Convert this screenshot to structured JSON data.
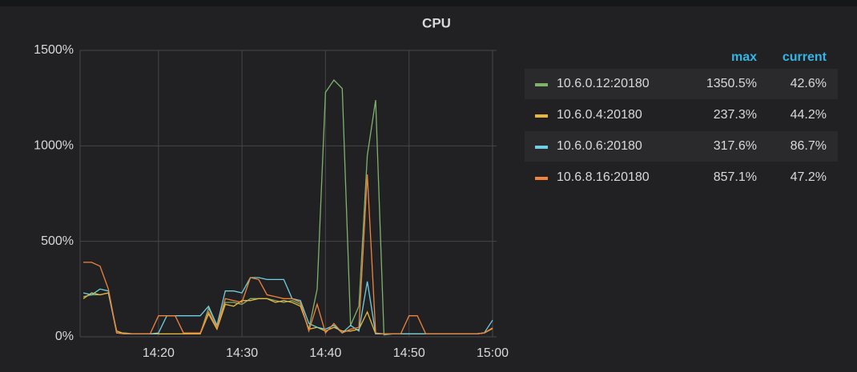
{
  "chart_data": {
    "type": "line",
    "title": "CPU",
    "x": [
      "14:11",
      "14:12",
      "14:13",
      "14:14",
      "14:15",
      "14:16",
      "14:17",
      "14:18",
      "14:19",
      "14:20",
      "14:21",
      "14:22",
      "14:23",
      "14:24",
      "14:25",
      "14:26",
      "14:27",
      "14:28",
      "14:29",
      "14:30",
      "14:31",
      "14:32",
      "14:33",
      "14:34",
      "14:35",
      "14:36",
      "14:37",
      "14:38",
      "14:39",
      "14:40",
      "14:41",
      "14:42",
      "14:43",
      "14:44",
      "14:45",
      "14:46",
      "14:47",
      "14:48",
      "14:49",
      "14:50",
      "14:51",
      "14:52",
      "14:53",
      "14:54",
      "14:55",
      "14:56",
      "14:57",
      "14:58",
      "14:59",
      "15:00"
    ],
    "xlim": [
      "14:11",
      "15:00"
    ],
    "xticks": [
      "14:20",
      "14:30",
      "14:40",
      "14:50",
      "15:00"
    ],
    "ylim": [
      0,
      1500
    ],
    "yticks": [
      {
        "value": 0,
        "label": "0%"
      },
      {
        "value": 500,
        "label": "500%"
      },
      {
        "value": 1000,
        "label": "1000%"
      },
      {
        "value": 1500,
        "label": "1500%"
      }
    ],
    "grid": true,
    "legend_headers": [
      "max",
      "current"
    ],
    "series": [
      {
        "name": "10.6.0.12:20180",
        "color": "#7eb26d",
        "max": "1350.5%",
        "current": "42.6%",
        "values": [
          210,
          220,
          220,
          230,
          20,
          20,
          15,
          15,
          15,
          15,
          15,
          15,
          15,
          15,
          15,
          150,
          60,
          180,
          180,
          170,
          200,
          200,
          200,
          190,
          180,
          190,
          170,
          40,
          250,
          1280,
          1345,
          1300,
          60,
          160,
          950,
          1240,
          10,
          15,
          15,
          15,
          15,
          15,
          15,
          15,
          15,
          15,
          15,
          15,
          20,
          43
        ]
      },
      {
        "name": "10.6.0.4:20180",
        "color": "#eab839",
        "max": "237.3%",
        "current": "44.2%",
        "values": [
          200,
          230,
          220,
          230,
          30,
          15,
          15,
          15,
          15,
          15,
          15,
          15,
          15,
          15,
          15,
          120,
          40,
          170,
          160,
          190,
          190,
          200,
          200,
          180,
          190,
          180,
          160,
          40,
          50,
          30,
          50,
          30,
          30,
          40,
          130,
          15,
          15,
          15,
          15,
          15,
          15,
          15,
          15,
          15,
          15,
          15,
          15,
          15,
          20,
          44
        ]
      },
      {
        "name": "10.6.0.6:20180",
        "color": "#6ed0e0",
        "max": "317.6%",
        "current": "86.7%",
        "values": [
          230,
          220,
          250,
          240,
          20,
          15,
          15,
          15,
          15,
          20,
          110,
          110,
          110,
          110,
          110,
          160,
          60,
          240,
          240,
          230,
          310,
          310,
          300,
          300,
          300,
          200,
          190,
          70,
          50,
          40,
          60,
          20,
          60,
          30,
          290,
          15,
          15,
          15,
          15,
          15,
          15,
          15,
          15,
          15,
          15,
          15,
          15,
          15,
          20,
          87
        ]
      },
      {
        "name": "10.6.8.16:20180",
        "color": "#ef843c",
        "max": "857.1%",
        "current": "47.2%",
        "values": [
          390,
          390,
          370,
          250,
          20,
          15,
          15,
          15,
          15,
          110,
          110,
          110,
          20,
          20,
          20,
          130,
          50,
          200,
          190,
          180,
          310,
          300,
          220,
          210,
          200,
          200,
          180,
          30,
          170,
          20,
          70,
          20,
          40,
          50,
          850,
          20,
          15,
          15,
          15,
          110,
          110,
          15,
          15,
          15,
          15,
          15,
          15,
          15,
          20,
          47
        ]
      }
    ]
  }
}
